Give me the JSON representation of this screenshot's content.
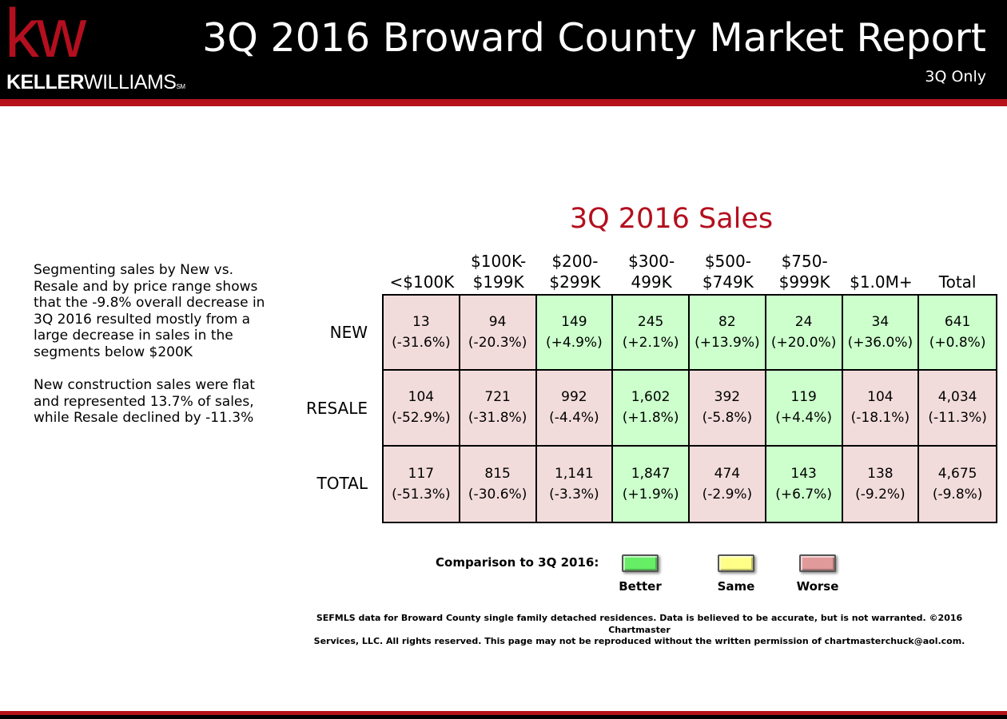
{
  "header": {
    "logo_mark": "kw",
    "logo_name_bold": "KELLER",
    "logo_name_light": "WILLIAMS",
    "logo_tm": "SM",
    "title": "3Q 2016 Broward County Market Report",
    "subtitle": "3Q Only"
  },
  "commentary": [
    "Segmenting sales by New vs. Resale and by price range shows that the -9.8% overall decrease in 3Q 2016 resulted mostly from a large decrease in sales in the segments below $200K",
    "New construction sales were flat and represented 13.7% of sales, while Resale declined by -11.3%"
  ],
  "chart_data": {
    "type": "table",
    "title": "3Q 2016 Sales",
    "columns": [
      "<$100K",
      "$100K-\n$199K",
      "$200-\n$299K",
      "$300-\n499K",
      "$500-\n$749K",
      "$750-\n$999K",
      "$1.0M+",
      "Total"
    ],
    "rows": [
      {
        "label": "NEW",
        "values": [
          "13",
          "94",
          "149",
          "245",
          "82",
          "24",
          "34",
          "641"
        ],
        "changes": [
          "(-31.6%)",
          "(-20.3%)",
          "(+4.9%)",
          "(+2.1%)",
          "(+13.9%)",
          "(+20.0%)",
          "(+36.0%)",
          "(+0.8%)"
        ],
        "status": [
          "worse",
          "worse",
          "better",
          "better",
          "better",
          "better",
          "better",
          "better"
        ]
      },
      {
        "label": "RESALE",
        "values": [
          "104",
          "721",
          "992",
          "1,602",
          "392",
          "119",
          "104",
          "4,034"
        ],
        "changes": [
          "(-52.9%)",
          "(-31.8%)",
          "(-4.4%)",
          "(+1.8%)",
          "(-5.8%)",
          "(+4.4%)",
          "(-18.1%)",
          "(-11.3%)"
        ],
        "status": [
          "worse",
          "worse",
          "worse",
          "better",
          "worse",
          "better",
          "worse",
          "worse"
        ]
      },
      {
        "label": "TOTAL",
        "values": [
          "117",
          "815",
          "1,141",
          "1,847",
          "474",
          "143",
          "138",
          "4,675"
        ],
        "changes": [
          "(-51.3%)",
          "(-30.6%)",
          "(-3.3%)",
          "(+1.9%)",
          "(-2.9%)",
          "(+6.7%)",
          "(-9.2%)",
          "(-9.8%)"
        ],
        "status": [
          "worse",
          "worse",
          "worse",
          "better",
          "worse",
          "better",
          "worse",
          "worse"
        ]
      }
    ],
    "legend": {
      "label": "Comparison to 3Q 2016:",
      "items": [
        {
          "name": "Better",
          "color": "#66ee66"
        },
        {
          "name": "Same",
          "color": "#ffff88"
        },
        {
          "name": "Worse",
          "color": "#e09a9a"
        }
      ]
    },
    "status_colors": {
      "better": "#ccffcc",
      "worse": "#f2dcdb",
      "same": "#ffff99"
    }
  },
  "footnote": {
    "line1": "SEFMLS data for Broward County single family detached residences.  Data is believed to be accurate, but is not warranted.   ©2016  Chartmaster",
    "line2": "Services, LLC.  All rights reserved. This page may not be reproduced without the written permission of chartmasterchuck@aol.com."
  }
}
